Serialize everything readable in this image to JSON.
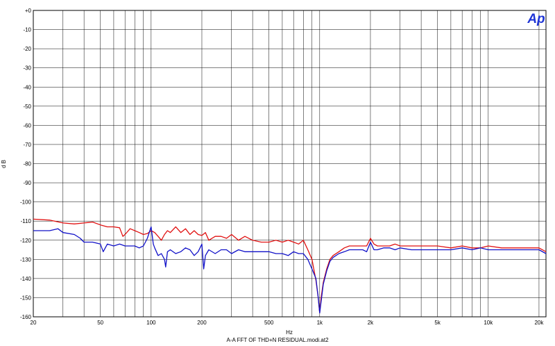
{
  "logo_text": "Ap",
  "chart_data": {
    "type": "line",
    "title": "",
    "xlabel": "Hz",
    "ylabel": "d B",
    "caption": "A-A FFT OF THD+N RESIDUAL.modi.at2",
    "xscale": "log",
    "xlim": [
      20,
      22000
    ],
    "ylim": [
      -160,
      0
    ],
    "grid": true,
    "x_ticks": [
      20,
      50,
      100,
      200,
      500,
      1000,
      2000,
      5000,
      10000,
      20000
    ],
    "x_tick_labels": [
      "20",
      "50",
      "100",
      "200",
      "500",
      "1k",
      "2k",
      "5k",
      "10k",
      "20k"
    ],
    "y_ticks": [
      0,
      -10,
      -20,
      -30,
      -40,
      -50,
      -60,
      -70,
      -80,
      -90,
      -100,
      -110,
      -120,
      -130,
      -140,
      -150,
      -160
    ],
    "y_tick_labels": [
      "+0",
      "-10",
      "-20",
      "-30",
      "-40",
      "-50",
      "-60",
      "-70",
      "-80",
      "-90",
      "-100",
      "-110",
      "-120",
      "-130",
      "-140",
      "-150",
      "-160"
    ],
    "series": [
      {
        "color": "#e01010",
        "x": [
          20,
          25,
          30,
          35,
          40,
          45,
          50,
          55,
          60,
          65,
          68,
          70,
          75,
          80,
          85,
          90,
          95,
          100,
          105,
          110,
          115,
          120,
          125,
          130,
          140,
          150,
          160,
          170,
          180,
          190,
          200,
          210,
          220,
          240,
          260,
          280,
          300,
          330,
          360,
          400,
          450,
          500,
          550,
          600,
          650,
          700,
          750,
          800,
          850,
          900,
          950,
          980,
          1000,
          1020,
          1050,
          1100,
          1150,
          1200,
          1300,
          1400,
          1500,
          1600,
          1700,
          1800,
          1900,
          2000,
          2100,
          2200,
          2400,
          2600,
          2800,
          3000,
          3500,
          4000,
          4500,
          5000,
          6000,
          7000,
          8000,
          9000,
          10000,
          12000,
          14000,
          16000,
          18000,
          20000,
          22000
        ],
        "values": [
          -109,
          -109.5,
          -111,
          -111.5,
          -111,
          -110.5,
          -112,
          -113,
          -113,
          -113.5,
          -118,
          -117,
          -114,
          -115,
          -116,
          -117,
          -116.5,
          -115,
          -116,
          -118,
          -120,
          -117,
          -115,
          -116,
          -113,
          -116,
          -114,
          -117,
          -115,
          -117,
          -117.5,
          -116,
          -120,
          -118,
          -118,
          -119,
          -117,
          -120,
          -118,
          -120,
          -121,
          -121,
          -120,
          -121,
          -120,
          -121,
          -122,
          -120,
          -125,
          -130,
          -141,
          -150,
          -158,
          -150,
          -142,
          -135,
          -130,
          -128,
          -126,
          -124,
          -123,
          -123,
          -123,
          -123,
          -123,
          -119,
          -122,
          -123,
          -123,
          -123,
          -122,
          -123,
          -123,
          -123,
          -123,
          -123,
          -124,
          -123,
          -124,
          -124,
          -123,
          -124,
          -124,
          -124,
          -124,
          -124,
          -126
        ]
      },
      {
        "color": "#1010c8",
        "x": [
          20,
          25,
          28,
          30,
          35,
          38,
          40,
          45,
          50,
          52,
          55,
          60,
          65,
          70,
          75,
          80,
          85,
          90,
          95,
          100,
          103,
          105,
          110,
          115,
          120,
          122,
          125,
          130,
          140,
          150,
          160,
          170,
          180,
          190,
          200,
          205,
          210,
          220,
          240,
          260,
          280,
          300,
          330,
          360,
          400,
          450,
          500,
          550,
          600,
          650,
          700,
          750,
          800,
          850,
          900,
          950,
          980,
          1000,
          1020,
          1050,
          1100,
          1150,
          1200,
          1300,
          1400,
          1500,
          1600,
          1700,
          1800,
          1900,
          2000,
          2100,
          2200,
          2400,
          2600,
          2800,
          3000,
          3500,
          4000,
          4500,
          5000,
          6000,
          7000,
          8000,
          9000,
          10000,
          12000,
          14000,
          16000,
          18000,
          20000,
          22000
        ],
        "values": [
          -115,
          -115,
          -114,
          -116,
          -117,
          -119,
          -121,
          -121,
          -122,
          -126,
          -122,
          -123,
          -122,
          -123,
          -123,
          -123,
          -124,
          -123,
          -119,
          -113,
          -122,
          -124,
          -128,
          -127,
          -130,
          -134,
          -126,
          -125,
          -127,
          -126,
          -124,
          -125,
          -128,
          -126,
          -122,
          -135,
          -128,
          -125,
          -127,
          -125,
          -125,
          -127,
          -125,
          -126,
          -126,
          -126,
          -126,
          -127,
          -127,
          -128,
          -126,
          -127,
          -127,
          -130,
          -135,
          -140,
          -150,
          -158,
          -152,
          -143,
          -136,
          -131,
          -129,
          -127,
          -126,
          -125,
          -125,
          -125,
          -125,
          -126,
          -121,
          -125,
          -125,
          -124,
          -124,
          -125,
          -124,
          -125,
          -125,
          -125,
          -125,
          -125,
          -124,
          -125,
          -124,
          -125,
          -125,
          -125,
          -125,
          -125,
          -125,
          -127
        ]
      }
    ]
  }
}
